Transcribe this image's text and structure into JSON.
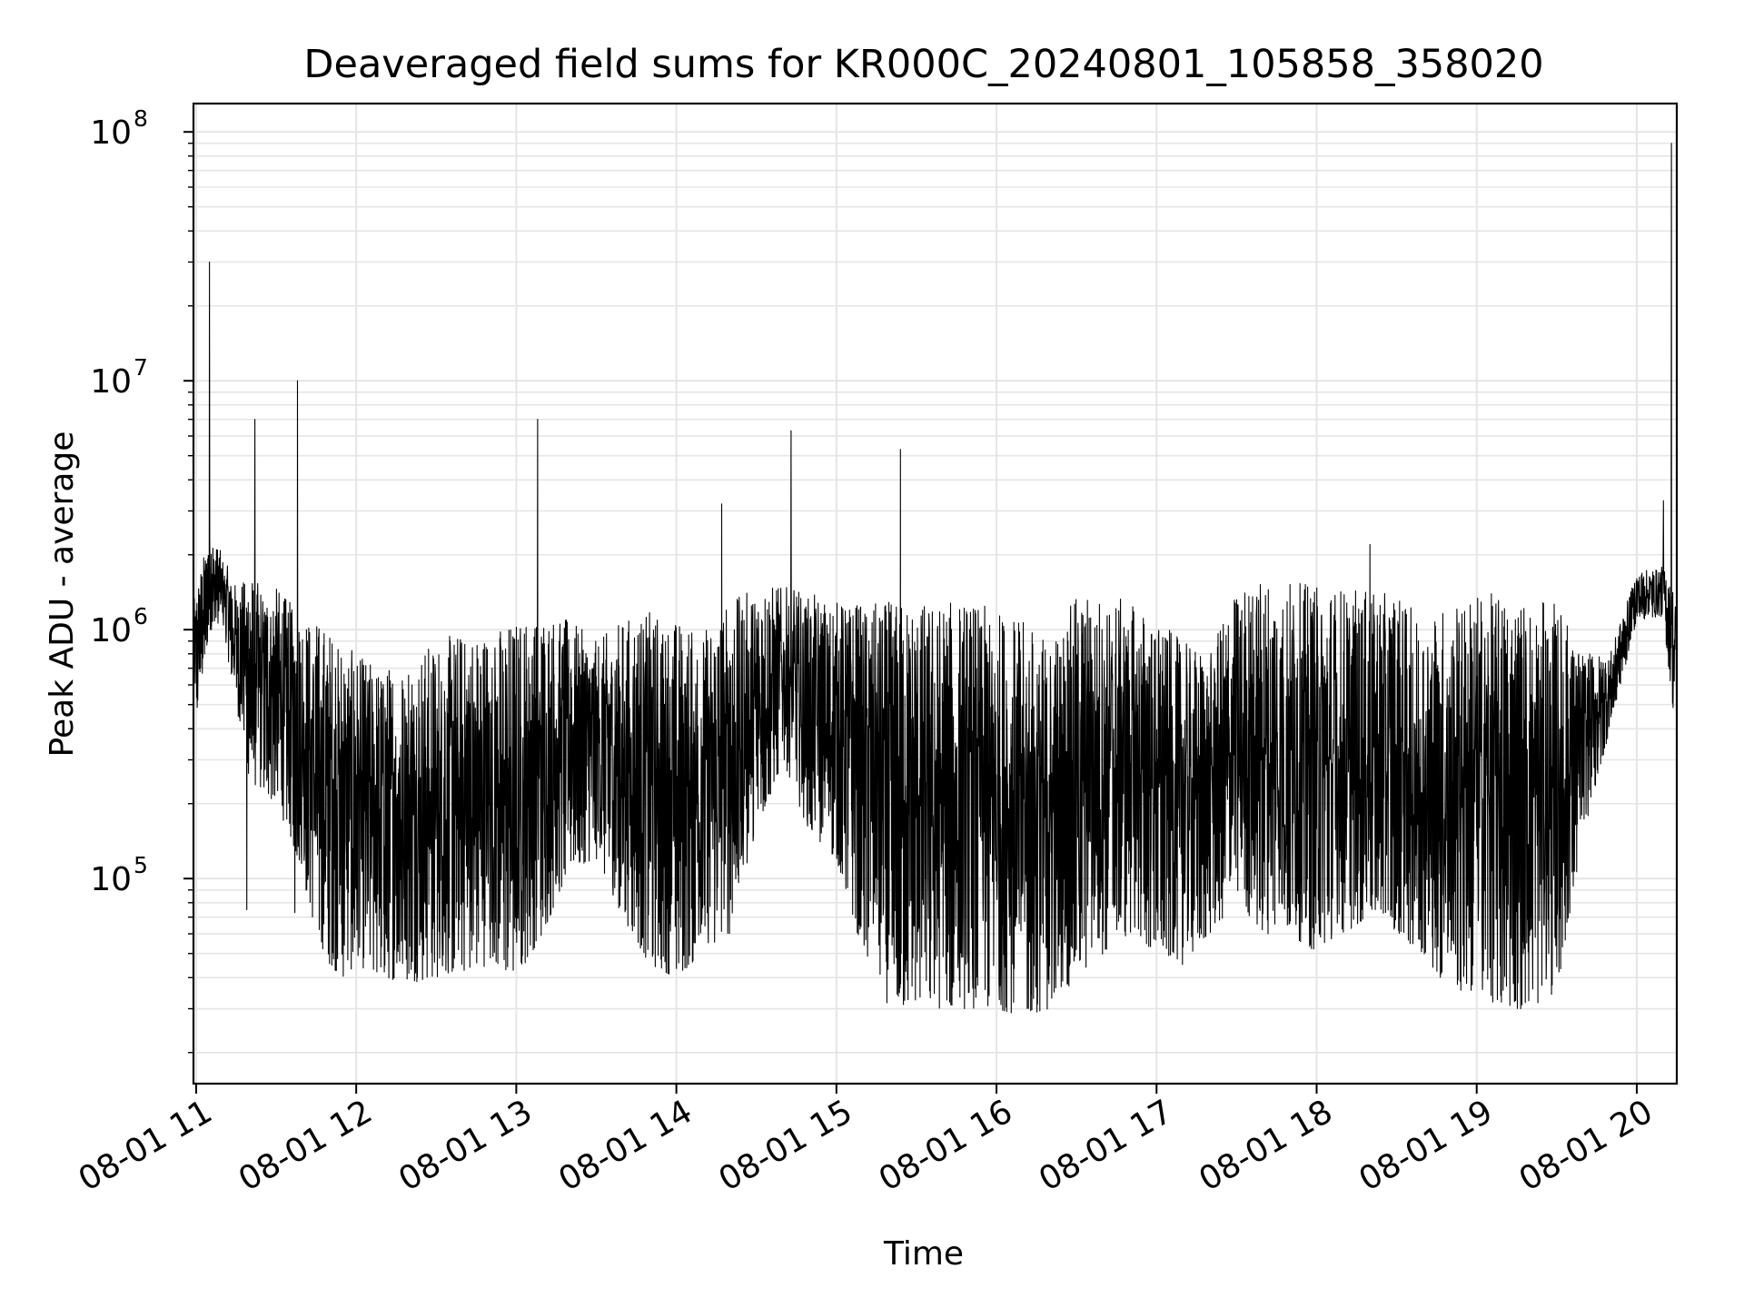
{
  "chart_data": {
    "type": "line",
    "title": "Deaveraged field sums for KR000C_20240801_105858_358020",
    "xlabel": "Time",
    "ylabel": "Peak ADU - average",
    "y_scale": "log",
    "ylim": [
      15000,
      130000000
    ],
    "xlim": [
      "08-01 10:59",
      "08-01 20:15"
    ],
    "grid": true,
    "line_color": "#000000",
    "grid_color": "#e5e5e5",
    "x_ticks": [
      {
        "label": "08-01 11",
        "value": "08-01 11:00"
      },
      {
        "label": "08-01 12",
        "value": "08-01 12:00"
      },
      {
        "label": "08-01 13",
        "value": "08-01 13:00"
      },
      {
        "label": "08-01 14",
        "value": "08-01 14:00"
      },
      {
        "label": "08-01 15",
        "value": "08-01 15:00"
      },
      {
        "label": "08-01 16",
        "value": "08-01 16:00"
      },
      {
        "label": "08-01 17",
        "value": "08-01 17:00"
      },
      {
        "label": "08-01 18",
        "value": "08-01 18:00"
      },
      {
        "label": "08-01 19",
        "value": "08-01 19:00"
      },
      {
        "label": "08-01 20",
        "value": "08-01 20:00"
      }
    ],
    "y_ticks": [
      {
        "base": "10",
        "exp": "5",
        "value": 100000
      },
      {
        "base": "10",
        "exp": "6",
        "value": 1000000
      },
      {
        "base": "10",
        "exp": "7",
        "value": 10000000
      },
      {
        "base": "10",
        "exp": "8",
        "value": 100000000
      }
    ],
    "series": [
      {
        "x": [
          "08-01 10:59",
          "08-01 11:05",
          "08-01 11:10",
          "08-01 11:15",
          "08-01 11:20",
          "08-01 11:25",
          "08-01 11:30",
          "08-01 11:35",
          "08-01 11:40",
          "08-01 11:45",
          "08-01 11:50",
          "08-01 11:55",
          "08-01 12:00",
          "08-01 12:10",
          "08-01 12:20",
          "08-01 12:30",
          "08-01 12:40",
          "08-01 12:50",
          "08-01 13:00",
          "08-01 13:10",
          "08-01 13:20",
          "08-01 13:30",
          "08-01 13:40",
          "08-01 13:50",
          "08-01 14:00",
          "08-01 14:10",
          "08-01 14:20",
          "08-01 14:30",
          "08-01 14:40",
          "08-01 14:50",
          "08-01 15:00",
          "08-01 15:10",
          "08-01 15:20",
          "08-01 15:30",
          "08-01 15:40",
          "08-01 15:50",
          "08-01 16:00",
          "08-01 16:10",
          "08-01 16:20",
          "08-01 16:30",
          "08-01 16:40",
          "08-01 16:50",
          "08-01 17:00",
          "08-01 17:10",
          "08-01 17:20",
          "08-01 17:30",
          "08-01 17:40",
          "08-01 17:50",
          "08-01 18:00",
          "08-01 18:10",
          "08-01 18:20",
          "08-01 18:30",
          "08-01 18:40",
          "08-01 18:50",
          "08-01 19:00",
          "08-01 19:10",
          "08-01 19:20",
          "08-01 19:30",
          "08-01 19:40",
          "08-01 19:50",
          "08-01 20:00",
          "08-01 20:10",
          "08-01 20:15"
        ],
        "high": [
          1300000,
          2500000,
          2000000,
          1500000,
          1700000,
          1500000,
          1500000,
          1300000,
          1200000,
          1100000,
          1000000,
          900000,
          800000,
          700000,
          800000,
          900000,
          1000000,
          1000000,
          1100000,
          1200000,
          1100000,
          900000,
          1100000,
          1200000,
          1100000,
          1000000,
          1300000,
          1500000,
          1500000,
          1400000,
          1300000,
          1300000,
          1300000,
          1300000,
          1300000,
          1300000,
          1200000,
          1100000,
          900000,
          1400000,
          1400000,
          1300000,
          1100000,
          900000,
          800000,
          1500000,
          1600000,
          1600000,
          1500000,
          1500000,
          1400000,
          1400000,
          1100000,
          1300000,
          1400000,
          1400000,
          1300000,
          1300000,
          800000,
          800000,
          1700000,
          1800000,
          1400000
        ],
        "low": [
          350000,
          1000000,
          1000000,
          500000,
          250000,
          220000,
          200000,
          150000,
          100000,
          60000,
          45000,
          40000,
          45000,
          40000,
          38000,
          40000,
          42000,
          45000,
          40000,
          60000,
          110000,
          120000,
          70000,
          45000,
          40000,
          50000,
          60000,
          150000,
          300000,
          150000,
          120000,
          50000,
          30000,
          30000,
          30000,
          30000,
          30000,
          28000,
          30000,
          40000,
          50000,
          60000,
          50000,
          45000,
          60000,
          80000,
          60000,
          60000,
          50000,
          60000,
          70000,
          60000,
          50000,
          35000,
          35000,
          30000,
          30000,
          35000,
          150000,
          400000,
          1100000,
          1100000,
          350000
        ],
        "spikes": [
          {
            "x": "08-01 11:05",
            "y": 30000000
          },
          {
            "x": "08-01 11:22",
            "y": 7000000
          },
          {
            "x": "08-01 11:38",
            "y": 10000000
          },
          {
            "x": "08-01 13:08",
            "y": 7000000
          },
          {
            "x": "08-01 14:17",
            "y": 3200000
          },
          {
            "x": "08-01 14:43",
            "y": 6300000
          },
          {
            "x": "08-01 15:24",
            "y": 5300000
          },
          {
            "x": "08-01 18:20",
            "y": 2200000
          },
          {
            "x": "08-01 20:10",
            "y": 3300000
          },
          {
            "x": "08-01 20:13",
            "y": 90000000
          }
        ],
        "dips": [
          {
            "x": "08-01 11:19",
            "y": 75000
          },
          {
            "x": "08-01 11:37",
            "y": 73000
          }
        ]
      }
    ]
  }
}
